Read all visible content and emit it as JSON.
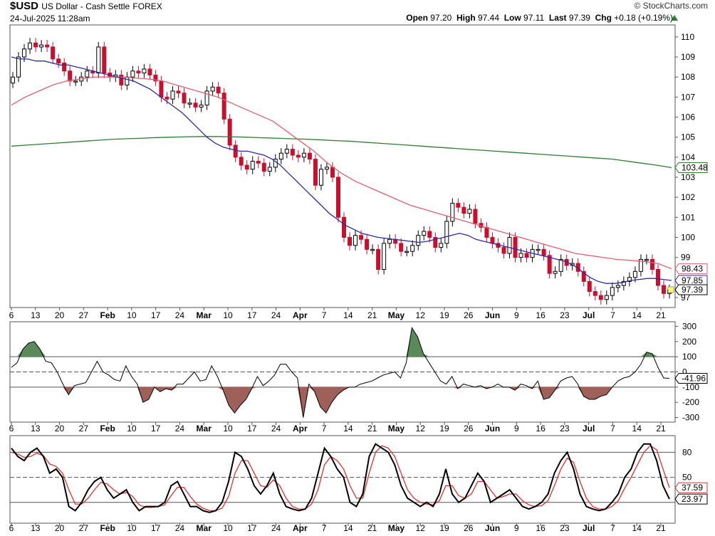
{
  "header": {
    "symbol": "$USD",
    "name": "US Dollar - Cash Settle",
    "exchange": "FOREX",
    "datetime": "24-Jul-2025 11:28am",
    "brand": "© StockCharts.com",
    "open_label": "Open",
    "open": "97.20",
    "high_label": "High",
    "high": "97.44",
    "low_label": "Low",
    "low": "97.11",
    "last_label": "Last",
    "last": "97.39",
    "chg_label": "Chg",
    "chg": "+0.18 (+0.19%)",
    "chg_arrow": "up-triangle-icon"
  },
  "chart_data": [
    {
      "type": "candlestick",
      "title": "$USD US Dollar - Cash Settle FOREX",
      "ylim": [
        96.5,
        110.6
      ],
      "yticks": [
        "110",
        "109",
        "108",
        "107",
        "106",
        "105",
        "104",
        "103",
        "102",
        "101",
        "100",
        "99",
        "97"
      ],
      "x_ticks": [
        "6",
        "13",
        "20",
        "27",
        "Feb",
        "10",
        "17",
        "24",
        "Mar",
        "10",
        "17",
        "24",
        "Apr",
        "7",
        "14",
        "21",
        "May",
        "12",
        "19",
        "26",
        "Jun",
        "9",
        "16",
        "23",
        "Jul",
        "7",
        "14",
        "21"
      ],
      "closes": [
        108.0,
        109.0,
        109.4,
        109.7,
        109.5,
        109.6,
        109.5,
        108.9,
        108.7,
        108.3,
        107.8,
        107.8,
        108.0,
        108.3,
        108.2,
        109.5,
        108.2,
        108.0,
        108.1,
        107.6,
        108.0,
        108.3,
        108.2,
        108.4,
        108.1,
        107.8,
        107.0,
        106.9,
        107.3,
        107.2,
        106.7,
        106.7,
        106.5,
        106.6,
        107.3,
        107.5,
        107.2,
        105.9,
        104.6,
        104.0,
        103.6,
        103.4,
        103.8,
        103.7,
        103.3,
        103.5,
        103.9,
        104.2,
        104.4,
        104.1,
        104.0,
        104.2,
        103.9,
        102.6,
        103.4,
        103.5,
        103.0,
        101.0,
        100.0,
        99.6,
        100.1,
        99.9,
        99.4,
        99.4,
        98.4,
        99.7,
        99.9,
        99.7,
        99.3,
        99.3,
        99.6,
        100.1,
        100.3,
        100.0,
        99.5,
        99.7,
        100.8,
        101.7,
        101.5,
        101.2,
        101.4,
        100.7,
        100.5,
        100.0,
        99.7,
        99.5,
        99.2,
        100.0,
        99.0,
        99.2,
        99.0,
        99.4,
        99.4,
        99.1,
        98.2,
        98.3,
        98.9,
        98.6,
        98.7,
        98.3,
        97.8,
        97.3,
        97.1,
        96.9,
        97.1,
        97.5,
        97.6,
        97.8,
        98.0,
        98.3,
        98.9,
        98.9,
        98.4,
        97.6,
        97.2,
        97.39
      ],
      "series": [
        {
          "name": "SMA 20",
          "color": "#2c2ca0",
          "values": [
            109.0,
            108.9,
            108.9,
            108.8,
            108.8,
            108.7,
            108.6,
            108.6,
            108.5,
            108.4,
            108.3,
            108.2,
            108.1,
            108.0,
            107.9,
            107.8,
            107.6,
            107.4,
            107.1,
            106.8,
            106.5,
            106.2,
            105.8,
            105.4,
            105.0,
            104.7,
            104.5,
            104.4,
            104.3,
            104.3,
            104.2,
            104.1,
            103.9,
            103.6,
            103.2,
            102.8,
            102.4,
            102.0,
            101.6,
            101.2,
            100.9,
            100.6,
            100.4,
            100.2,
            100.1,
            100.0,
            99.95,
            99.9,
            99.85,
            99.8,
            99.75,
            99.8,
            99.9,
            100.0,
            100.1,
            100.2,
            100.1,
            99.9,
            99.8,
            99.7,
            99.6,
            99.5,
            99.4,
            99.3,
            99.2,
            99.1,
            99.0,
            98.9,
            98.8,
            98.6,
            98.3,
            98.0,
            97.8,
            97.7,
            97.7,
            97.75,
            97.85,
            97.9,
            97.95,
            97.95,
            97.9,
            97.85
          ]
        },
        {
          "name": "SMA 50",
          "color": "#e06070",
          "values": [
            106.6,
            107.0,
            107.3,
            107.6,
            107.8,
            107.9,
            108.0,
            108.0,
            108.0,
            107.95,
            107.9,
            107.8,
            107.6,
            107.4,
            107.2,
            107.0,
            106.7,
            106.4,
            106.1,
            105.8,
            105.3,
            104.8,
            104.3,
            103.7,
            103.2,
            102.8,
            102.5,
            102.2,
            101.9,
            101.6,
            101.4,
            101.2,
            101.0,
            100.8,
            100.6,
            100.4,
            100.2,
            100.0,
            99.8,
            99.6,
            99.4,
            99.2,
            99.1,
            99.0,
            98.9,
            98.85,
            98.8,
            98.7,
            98.43
          ]
        },
        {
          "name": "SMA 200",
          "color": "#2e7d32",
          "values": [
            104.55,
            104.6,
            104.65,
            104.7,
            104.75,
            104.8,
            104.85,
            104.9,
            104.92,
            104.95,
            104.98,
            105.0,
            105.02,
            105.03,
            105.03,
            105.02,
            105.0,
            104.97,
            104.95,
            104.92,
            104.9,
            104.87,
            104.83,
            104.8,
            104.75,
            104.7,
            104.65,
            104.6,
            104.55,
            104.5,
            104.45,
            104.4,
            104.35,
            104.3,
            104.25,
            104.2,
            104.15,
            104.1,
            104.05,
            104.0,
            103.95,
            103.9,
            103.8,
            103.7,
            103.6,
            103.48
          ]
        }
      ],
      "current_labels": {
        "sma200": "103.48",
        "sma50": "98.43",
        "sma20": "97.85",
        "last": "97.39"
      }
    },
    {
      "type": "line",
      "indicator": "CCI",
      "ylim": [
        -330,
        330
      ],
      "yticks": [
        "300",
        "200",
        "100",
        "0",
        "-100",
        "-200",
        "-300"
      ],
      "reference_lines": [
        100,
        0,
        -100
      ],
      "values": [
        30,
        60,
        150,
        190,
        200,
        150,
        70,
        60,
        0,
        -80,
        -150,
        -90,
        -80,
        -70,
        0,
        70,
        0,
        -20,
        -50,
        -60,
        40,
        -30,
        -80,
        -200,
        -180,
        -100,
        -130,
        -110,
        -120,
        -80,
        -80,
        -40,
        0,
        -60,
        -50,
        40,
        -30,
        -120,
        -220,
        -270,
        -220,
        -180,
        -110,
        -30,
        -90,
        -60,
        -20,
        50,
        50,
        0,
        -40,
        -300,
        -80,
        -130,
        -230,
        -270,
        -200,
        -150,
        -120,
        -100,
        -100,
        -80,
        -70,
        -60,
        -40,
        -20,
        -10,
        0,
        -40,
        60,
        290,
        230,
        120,
        60,
        0,
        -60,
        -80,
        -30,
        -110,
        -80,
        -90,
        -100,
        -90,
        -110,
        -100,
        -80,
        -100,
        -100,
        -120,
        -80,
        -90,
        -110,
        -60,
        -180,
        -170,
        -120,
        -60,
        -40,
        -30,
        -80,
        -160,
        -180,
        -180,
        -160,
        -150,
        -100,
        -60,
        -40,
        -30,
        0,
        50,
        130,
        120,
        30,
        -40,
        -42
      ],
      "current_label": "-41.96"
    },
    {
      "type": "line",
      "indicator": "Stochastic",
      "ylim": [
        -5,
        100
      ],
      "yticks": [
        "80",
        "50"
      ],
      "reference_lines": [
        80,
        50,
        20
      ],
      "series": [
        {
          "name": "%K",
          "color": "#000000",
          "values": [
            85,
            75,
            70,
            80,
            85,
            75,
            55,
            60,
            50,
            15,
            10,
            20,
            35,
            45,
            50,
            35,
            25,
            30,
            35,
            20,
            10,
            15,
            15,
            15,
            20,
            40,
            45,
            30,
            15,
            15,
            10,
            8,
            10,
            20,
            45,
            80,
            75,
            60,
            40,
            30,
            40,
            55,
            30,
            15,
            12,
            10,
            12,
            25,
            55,
            85,
            75,
            60,
            50,
            20,
            15,
            30,
            75,
            90,
            85,
            80,
            65,
            40,
            25,
            20,
            15,
            20,
            15,
            30,
            60,
            30,
            20,
            25,
            40,
            55,
            45,
            20,
            25,
            30,
            35,
            25,
            15,
            12,
            15,
            20,
            30,
            55,
            70,
            80,
            60,
            30,
            15,
            12,
            10,
            12,
            20,
            30,
            50,
            60,
            80,
            90,
            90,
            70,
            40,
            23.97
          ]
        },
        {
          "name": "%D",
          "color": "#e03030",
          "values": [
            80,
            78,
            74,
            75,
            79,
            76,
            66,
            63,
            55,
            35,
            18,
            18,
            25,
            35,
            44,
            42,
            35,
            30,
            32,
            27,
            17,
            14,
            14,
            15,
            17,
            28,
            38,
            38,
            27,
            18,
            13,
            10,
            10,
            13,
            27,
            55,
            70,
            70,
            55,
            40,
            38,
            47,
            40,
            25,
            15,
            12,
            12,
            18,
            35,
            65,
            75,
            70,
            60,
            40,
            25,
            25,
            55,
            80,
            88,
            85,
            75,
            55,
            35,
            25,
            20,
            18,
            17,
            22,
            40,
            40,
            28,
            25,
            30,
            45,
            45,
            35,
            25,
            27,
            30,
            30,
            22,
            17,
            15,
            16,
            22,
            40,
            60,
            73,
            68,
            45,
            25,
            15,
            12,
            12,
            15,
            22,
            37,
            50,
            65,
            80,
            88,
            83,
            60,
            37.59
          ]
        }
      ],
      "current_labels": {
        "k": "23.97",
        "d": "37.59"
      }
    }
  ]
}
